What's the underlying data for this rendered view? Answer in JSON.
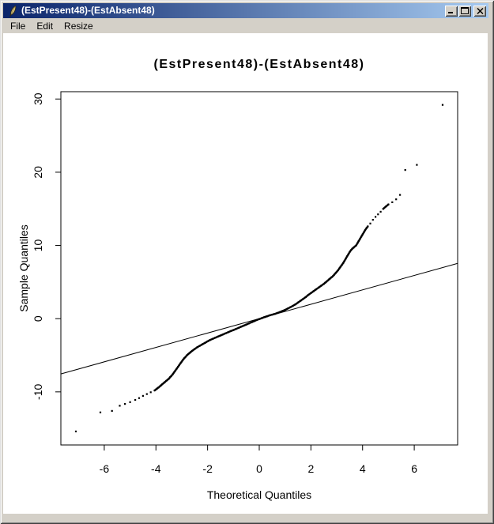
{
  "window": {
    "title": "(EstPresent48)-(EstAbsent48)",
    "icon": "quill-feather",
    "menu": [
      "File",
      "Edit",
      "Resize"
    ],
    "controls": {
      "minimize": "minimize",
      "maximize": "maximize",
      "close": "close"
    }
  },
  "colors": {
    "titlebar_left": "#0a246a",
    "titlebar_right": "#a6caf0",
    "frame": "#d4d0c8",
    "canvas": "#ffffff",
    "plot_foreground": "#000000",
    "title_text": "#ffffff"
  },
  "chart_data": {
    "type": "scatter",
    "title": "(EstPresent48)-(EstAbsent48)",
    "xlabel": "Theoretical Quantiles",
    "ylabel": "Sample Quantiles",
    "xlim": [
      -7.68,
      7.68
    ],
    "ylim": [
      -17.25,
      31.0
    ],
    "x_ticks": [
      -6,
      -4,
      -2,
      0,
      2,
      4,
      6
    ],
    "y_ticks": [
      -10,
      0,
      10,
      20,
      30
    ],
    "grid": false,
    "legend": null,
    "reference_line": {
      "x1": -7.68,
      "y1": -7.55,
      "x2": 7.68,
      "y2": 7.55
    },
    "points": [
      [
        -7.1,
        -15.4
      ],
      [
        -6.15,
        -12.8
      ],
      [
        -5.7,
        -12.6
      ],
      [
        -5.4,
        -11.9
      ],
      [
        -5.2,
        -11.65
      ],
      [
        -5.0,
        -11.4
      ],
      [
        -4.8,
        -11.1
      ],
      [
        -4.65,
        -10.85
      ],
      [
        -4.5,
        -10.55
      ],
      [
        -4.35,
        -10.3
      ],
      [
        -4.2,
        -10.05
      ],
      [
        -4.05,
        -9.8
      ],
      [
        -4.0,
        -9.67
      ],
      [
        -3.95,
        -9.53
      ],
      [
        -3.9,
        -9.4
      ],
      [
        -3.85,
        -9.25
      ],
      [
        -3.8,
        -9.1
      ],
      [
        -3.75,
        -8.95
      ],
      [
        -3.7,
        -8.8
      ],
      [
        -3.65,
        -8.65
      ],
      [
        -3.6,
        -8.5
      ],
      [
        -3.55,
        -8.35
      ],
      [
        -3.5,
        -8.2
      ],
      [
        -3.45,
        -8.0
      ],
      [
        -3.4,
        -7.8
      ],
      [
        -3.35,
        -7.6
      ],
      [
        -3.3,
        -7.35
      ],
      [
        -3.25,
        -7.1
      ],
      [
        -3.2,
        -6.85
      ],
      [
        -3.15,
        -6.6
      ],
      [
        -3.1,
        -6.35
      ],
      [
        -3.05,
        -6.1
      ],
      [
        -3.0,
        -5.85
      ],
      [
        -2.95,
        -5.6
      ],
      [
        -2.9,
        -5.4
      ],
      [
        -2.85,
        -5.2
      ],
      [
        -2.8,
        -5.0
      ],
      [
        -2.75,
        -4.85
      ],
      [
        -2.7,
        -4.7
      ],
      [
        -2.65,
        -4.55
      ],
      [
        -2.6,
        -4.4
      ],
      [
        -2.5,
        -4.15
      ],
      [
        -2.4,
        -3.9
      ],
      [
        -2.3,
        -3.7
      ],
      [
        -2.2,
        -3.5
      ],
      [
        -2.1,
        -3.3
      ],
      [
        -2.0,
        -3.1
      ],
      [
        -1.9,
        -2.9
      ],
      [
        -1.8,
        -2.75
      ],
      [
        -1.7,
        -2.6
      ],
      [
        -1.6,
        -2.45
      ],
      [
        -1.5,
        -2.3
      ],
      [
        -1.4,
        -2.15
      ],
      [
        -1.3,
        -2.0
      ],
      [
        -1.2,
        -1.85
      ],
      [
        -1.1,
        -1.7
      ],
      [
        -1.0,
        -1.55
      ],
      [
        -0.9,
        -1.4
      ],
      [
        -0.8,
        -1.25
      ],
      [
        -0.7,
        -1.1
      ],
      [
        -0.6,
        -0.95
      ],
      [
        -0.5,
        -0.8
      ],
      [
        -0.4,
        -0.65
      ],
      [
        -0.3,
        -0.5
      ],
      [
        -0.2,
        -0.35
      ],
      [
        -0.1,
        -0.18
      ],
      [
        0.0,
        -0.05
      ],
      [
        0.1,
        0.08
      ],
      [
        0.2,
        0.2
      ],
      [
        0.3,
        0.32
      ],
      [
        0.4,
        0.45
      ],
      [
        0.5,
        0.55
      ],
      [
        0.6,
        0.65
      ],
      [
        0.7,
        0.78
      ],
      [
        0.8,
        0.9
      ],
      [
        0.9,
        1.05
      ],
      [
        1.0,
        1.2
      ],
      [
        1.1,
        1.38
      ],
      [
        1.2,
        1.55
      ],
      [
        1.3,
        1.75
      ],
      [
        1.4,
        1.95
      ],
      [
        1.5,
        2.2
      ],
      [
        1.6,
        2.45
      ],
      [
        1.7,
        2.7
      ],
      [
        1.8,
        2.95
      ],
      [
        1.9,
        3.25
      ],
      [
        2.0,
        3.5
      ],
      [
        2.1,
        3.75
      ],
      [
        2.2,
        4.0
      ],
      [
        2.3,
        4.25
      ],
      [
        2.4,
        4.5
      ],
      [
        2.5,
        4.75
      ],
      [
        2.55,
        4.9
      ],
      [
        2.6,
        5.05
      ],
      [
        2.65,
        5.2
      ],
      [
        2.7,
        5.35
      ],
      [
        2.75,
        5.5
      ],
      [
        2.8,
        5.65
      ],
      [
        2.85,
        5.8
      ],
      [
        2.9,
        6.0
      ],
      [
        2.95,
        6.2
      ],
      [
        3.0,
        6.4
      ],
      [
        3.05,
        6.6
      ],
      [
        3.1,
        6.85
      ],
      [
        3.15,
        7.1
      ],
      [
        3.2,
        7.35
      ],
      [
        3.25,
        7.6
      ],
      [
        3.3,
        7.9
      ],
      [
        3.35,
        8.2
      ],
      [
        3.4,
        8.5
      ],
      [
        3.45,
        8.8
      ],
      [
        3.5,
        9.1
      ],
      [
        3.55,
        9.35
      ],
      [
        3.6,
        9.55
      ],
      [
        3.65,
        9.7
      ],
      [
        3.7,
        9.85
      ],
      [
        3.75,
        10.0
      ],
      [
        3.8,
        10.3
      ],
      [
        3.85,
        10.6
      ],
      [
        3.9,
        10.9
      ],
      [
        3.95,
        11.2
      ],
      [
        4.0,
        11.5
      ],
      [
        4.05,
        11.8
      ],
      [
        4.1,
        12.1
      ],
      [
        4.15,
        12.35
      ],
      [
        4.2,
        12.6
      ],
      [
        4.3,
        13.0
      ],
      [
        4.4,
        13.5
      ],
      [
        4.5,
        13.9
      ],
      [
        4.6,
        14.25
      ],
      [
        4.7,
        14.6
      ],
      [
        4.8,
        15.0
      ],
      [
        4.9,
        15.3
      ],
      [
        5.0,
        15.6
      ],
      [
        5.15,
        15.9
      ],
      [
        5.3,
        16.3
      ],
      [
        5.45,
        16.9
      ],
      [
        5.65,
        20.3
      ],
      [
        6.1,
        21.0
      ],
      [
        7.1,
        29.2
      ]
    ]
  }
}
